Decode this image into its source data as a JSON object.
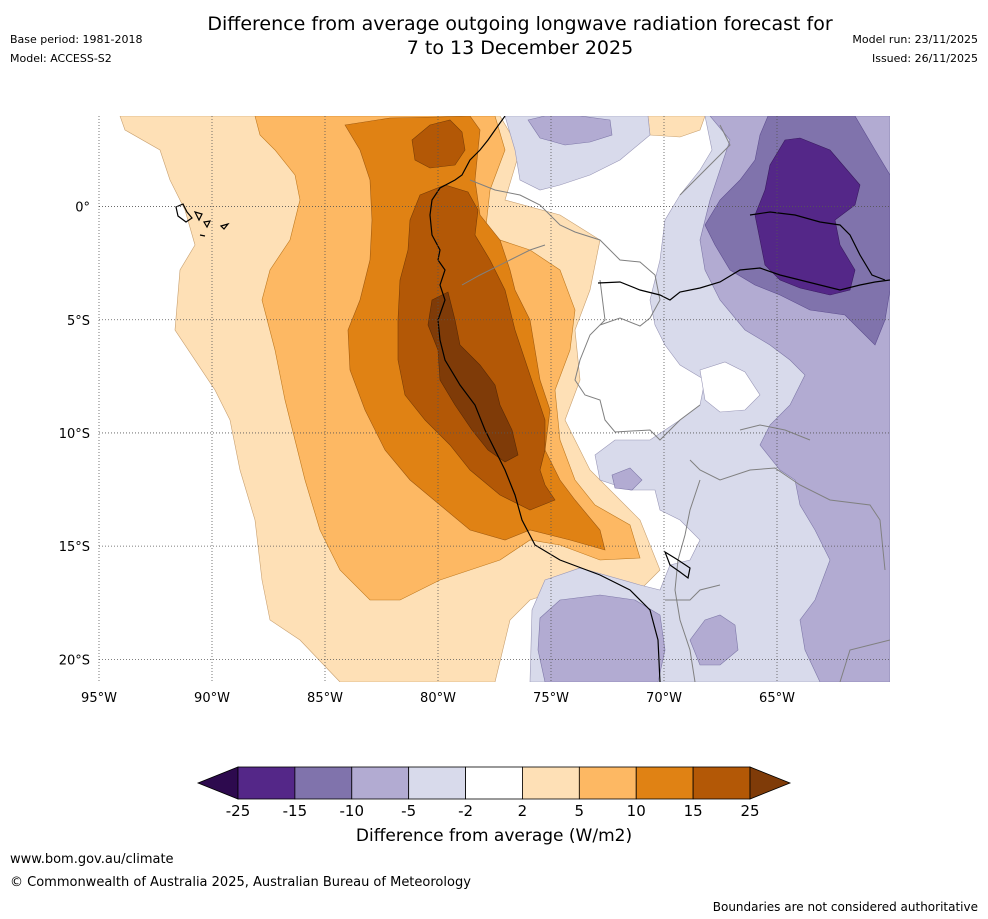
{
  "header": {
    "base_period": "Base period: 1981-2018",
    "model": "Model: ACCESS-S2",
    "title_line1": "Difference from average outgoing longwave radiation forecast for",
    "title_line2": "7 to 13 December 2025",
    "model_run": "Model run: 23/11/2025",
    "issued": "Issued: 26/11/2025"
  },
  "map": {
    "region": "Western South America and eastern Pacific",
    "lon_range": [
      -95,
      -60
    ],
    "lat_range": [
      -21,
      4
    ],
    "lon_ticks": [
      {
        "value": -95,
        "label": "95°W"
      },
      {
        "value": -90,
        "label": "90°W"
      },
      {
        "value": -85,
        "label": "85°W"
      },
      {
        "value": -80,
        "label": "80°W"
      },
      {
        "value": -75,
        "label": "75°W"
      },
      {
        "value": -70,
        "label": "70°W"
      },
      {
        "value": -65,
        "label": "65°W"
      }
    ],
    "lat_ticks": [
      {
        "value": 0,
        "label": "0°"
      },
      {
        "value": -5,
        "label": "5°S"
      },
      {
        "value": -10,
        "label": "10°S"
      },
      {
        "value": -15,
        "label": "15°S"
      },
      {
        "value": -20,
        "label": "20°S"
      }
    ]
  },
  "colorbar": {
    "title": "Difference from average (W/m2)",
    "levels": [
      "-25",
      "-15",
      "-10",
      "-5",
      "-2",
      "2",
      "5",
      "10",
      "15",
      "25"
    ],
    "colors": [
      "#2d0a4e",
      "#542788",
      "#8073ac",
      "#b2abd2",
      "#d8daeb",
      "#ffffff",
      "#fee0b6",
      "#fdb863",
      "#e08214",
      "#b35806",
      "#7f3b08"
    ]
  },
  "footer": {
    "url": "www.bom.gov.au/climate",
    "copyright": "© Commonwealth of Australia 2025, Australian Bureau of Meteorology",
    "disclaimer": "Boundaries are not considered authoritative"
  }
}
